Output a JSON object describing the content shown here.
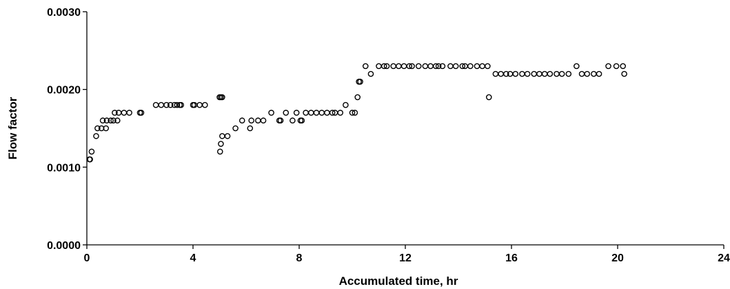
{
  "chart_data": {
    "type": "scatter",
    "title": "",
    "xlabel": "Accumulated time, hr",
    "ylabel": "Flow factor",
    "xlim": [
      0,
      24
    ],
    "ylim": [
      0.0,
      0.003
    ],
    "xticks": [
      0,
      4,
      8,
      12,
      16,
      20,
      24
    ],
    "xtick_labels": [
      "0",
      "4",
      "8",
      "12",
      "16",
      "20",
      "24"
    ],
    "yticks": [
      0.0,
      0.001,
      0.002,
      0.003
    ],
    "ytick_labels": [
      "0.0000",
      "0.0010",
      "0.0020",
      "0.0030"
    ],
    "grid": false,
    "legend": "none",
    "marker": "open-circle",
    "series": [
      {
        "points": [
          [
            0.1,
            0.0011
          ],
          [
            0.12,
            0.0011
          ],
          [
            0.18,
            0.0012
          ],
          [
            0.35,
            0.0014
          ],
          [
            0.4,
            0.0015
          ],
          [
            0.55,
            0.0015
          ],
          [
            0.6,
            0.0016
          ],
          [
            0.72,
            0.0015
          ],
          [
            0.75,
            0.0016
          ],
          [
            0.9,
            0.0016
          ],
          [
            1.0,
            0.0016
          ],
          [
            1.05,
            0.0017
          ],
          [
            1.15,
            0.0016
          ],
          [
            1.2,
            0.0017
          ],
          [
            1.4,
            0.0017
          ],
          [
            1.6,
            0.0017
          ],
          [
            2.0,
            0.0017
          ],
          [
            2.05,
            0.0017
          ],
          [
            2.6,
            0.0018
          ],
          [
            2.8,
            0.0018
          ],
          [
            3.0,
            0.0018
          ],
          [
            3.15,
            0.0018
          ],
          [
            3.3,
            0.0018
          ],
          [
            3.4,
            0.0018
          ],
          [
            3.5,
            0.0018
          ],
          [
            3.55,
            0.0018
          ],
          [
            4.0,
            0.0018
          ],
          [
            4.05,
            0.0018
          ],
          [
            4.25,
            0.0018
          ],
          [
            4.45,
            0.0018
          ],
          [
            5.0,
            0.0019
          ],
          [
            5.05,
            0.0019
          ],
          [
            5.1,
            0.0019
          ],
          [
            5.02,
            0.0012
          ],
          [
            5.05,
            0.0013
          ],
          [
            5.1,
            0.0014
          ],
          [
            5.3,
            0.0014
          ],
          [
            5.6,
            0.0015
          ],
          [
            5.85,
            0.0016
          ],
          [
            6.15,
            0.0015
          ],
          [
            6.2,
            0.0016
          ],
          [
            6.45,
            0.0016
          ],
          [
            6.65,
            0.0016
          ],
          [
            6.95,
            0.0017
          ],
          [
            7.25,
            0.0016
          ],
          [
            7.3,
            0.0016
          ],
          [
            7.5,
            0.0017
          ],
          [
            7.75,
            0.0016
          ],
          [
            7.9,
            0.0017
          ],
          [
            8.05,
            0.0016
          ],
          [
            8.1,
            0.0016
          ],
          [
            8.25,
            0.0017
          ],
          [
            8.45,
            0.0017
          ],
          [
            8.65,
            0.0017
          ],
          [
            8.85,
            0.0017
          ],
          [
            9.05,
            0.0017
          ],
          [
            9.25,
            0.0017
          ],
          [
            9.35,
            0.0017
          ],
          [
            9.55,
            0.0017
          ],
          [
            9.75,
            0.0018
          ],
          [
            10.0,
            0.0017
          ],
          [
            10.1,
            0.0017
          ],
          [
            10.2,
            0.0019
          ],
          [
            10.25,
            0.0021
          ],
          [
            10.3,
            0.0021
          ],
          [
            10.5,
            0.0023
          ],
          [
            10.7,
            0.0022
          ],
          [
            11.0,
            0.0023
          ],
          [
            11.2,
            0.0023
          ],
          [
            11.3,
            0.0023
          ],
          [
            11.55,
            0.0023
          ],
          [
            11.75,
            0.0023
          ],
          [
            11.95,
            0.0023
          ],
          [
            12.15,
            0.0023
          ],
          [
            12.25,
            0.0023
          ],
          [
            12.5,
            0.0023
          ],
          [
            12.75,
            0.0023
          ],
          [
            12.95,
            0.0023
          ],
          [
            13.15,
            0.0023
          ],
          [
            13.25,
            0.0023
          ],
          [
            13.4,
            0.0023
          ],
          [
            13.7,
            0.0023
          ],
          [
            13.9,
            0.0023
          ],
          [
            14.15,
            0.0023
          ],
          [
            14.25,
            0.0023
          ],
          [
            14.45,
            0.0023
          ],
          [
            14.7,
            0.0023
          ],
          [
            14.9,
            0.0023
          ],
          [
            15.1,
            0.0023
          ],
          [
            15.15,
            0.0019
          ],
          [
            15.4,
            0.0022
          ],
          [
            15.6,
            0.0022
          ],
          [
            15.8,
            0.0022
          ],
          [
            15.95,
            0.0022
          ],
          [
            16.15,
            0.0022
          ],
          [
            16.4,
            0.0022
          ],
          [
            16.6,
            0.0022
          ],
          [
            16.85,
            0.0022
          ],
          [
            17.05,
            0.0022
          ],
          [
            17.25,
            0.0022
          ],
          [
            17.45,
            0.0022
          ],
          [
            17.7,
            0.0022
          ],
          [
            17.9,
            0.0022
          ],
          [
            18.15,
            0.0022
          ],
          [
            18.45,
            0.0023
          ],
          [
            18.65,
            0.0022
          ],
          [
            18.85,
            0.0022
          ],
          [
            19.1,
            0.0022
          ],
          [
            19.3,
            0.0022
          ],
          [
            19.65,
            0.0023
          ],
          [
            19.95,
            0.0023
          ],
          [
            20.2,
            0.0023
          ],
          [
            20.25,
            0.0022
          ]
        ]
      }
    ]
  }
}
